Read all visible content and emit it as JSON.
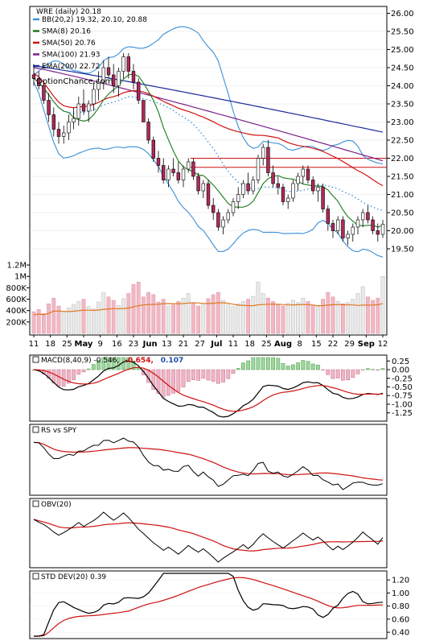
{
  "chart_data": {
    "type": "candlestick",
    "title": "WRE (daily) 20.18",
    "watermark": "OptionChance.com",
    "legend": [
      {
        "label": "BB(20,2) 19.32, 20.10, 20.88",
        "color": "#3b8fd6"
      },
      {
        "label": "SMA(8) 20.16",
        "color": "#1b7a1b"
      },
      {
        "label": "SMA(50) 20.76",
        "color": "#d01010"
      },
      {
        "label": "SMA(100) 21.93",
        "color": "#7a1f8a"
      },
      {
        "label": "EMA(200) 22.72",
        "color": "#1a2a9a"
      }
    ],
    "price_axis": {
      "ticks": [
        "26.00",
        "25.50",
        "25.00",
        "24.50",
        "24.00",
        "23.50",
        "23.00",
        "22.50",
        "22.00",
        "21.50",
        "21.00",
        "20.50",
        "20.00",
        "19.50"
      ],
      "ylim": [
        19.3,
        26.1
      ]
    },
    "volume_axis": {
      "ticks": [
        "1.2M",
        "1M",
        "800K",
        "600K",
        "400K",
        "200K"
      ],
      "ylim": [
        0,
        1300000
      ]
    },
    "x_ticks": [
      "11",
      "18",
      "25",
      "May",
      "9",
      "16",
      "23",
      "Jun",
      "13",
      "21",
      "27",
      "Jul",
      "11",
      "18",
      "25",
      "Aug",
      "8",
      "15",
      "22",
      "29",
      "Sep",
      "12"
    ],
    "bold_ticks": [
      "May",
      "Jun",
      "Jul",
      "Aug",
      "Sep"
    ],
    "resistance_lines": [
      22.0,
      21.75
    ],
    "ohlc": [
      [
        24.3,
        24.6,
        24.0,
        24.2
      ],
      [
        24.2,
        24.4,
        23.9,
        24.0
      ],
      [
        24.0,
        24.1,
        23.5,
        23.6
      ],
      [
        23.6,
        23.8,
        23.0,
        23.2
      ],
      [
        23.2,
        23.4,
        22.6,
        22.8
      ],
      [
        22.8,
        23.0,
        22.4,
        22.6
      ],
      [
        22.6,
        22.9,
        22.4,
        22.7
      ],
      [
        22.7,
        23.2,
        22.5,
        23.0
      ],
      [
        23.0,
        23.4,
        22.8,
        23.1
      ],
      [
        23.1,
        23.7,
        22.9,
        23.5
      ],
      [
        23.5,
        23.9,
        23.2,
        23.3
      ],
      [
        23.3,
        23.6,
        23.0,
        23.5
      ],
      [
        23.5,
        24.1,
        23.3,
        23.9
      ],
      [
        23.9,
        24.4,
        23.6,
        24.1
      ],
      [
        24.1,
        24.7,
        23.9,
        24.5
      ],
      [
        24.5,
        24.8,
        24.2,
        24.3
      ],
      [
        24.3,
        24.6,
        23.8,
        24.0
      ],
      [
        24.0,
        24.5,
        23.7,
        24.4
      ],
      [
        24.4,
        24.9,
        24.2,
        24.8
      ],
      [
        24.8,
        24.9,
        24.2,
        24.4
      ],
      [
        24.4,
        24.6,
        23.9,
        24.1
      ],
      [
        24.1,
        24.2,
        23.5,
        23.6
      ],
      [
        23.6,
        23.6,
        23.0,
        23.0
      ],
      [
        23.0,
        23.1,
        22.4,
        22.5
      ],
      [
        22.5,
        22.6,
        21.9,
        22.0
      ],
      [
        22.0,
        22.2,
        21.6,
        21.8
      ],
      [
        21.8,
        22.0,
        21.3,
        21.4
      ],
      [
        21.4,
        21.8,
        21.2,
        21.7
      ],
      [
        21.7,
        22.0,
        21.5,
        21.6
      ],
      [
        21.6,
        21.9,
        21.3,
        21.4
      ],
      [
        21.4,
        21.8,
        21.2,
        21.7
      ],
      [
        21.7,
        22.0,
        21.6,
        21.9
      ],
      [
        21.9,
        22.0,
        21.4,
        21.5
      ],
      [
        21.5,
        21.6,
        21.0,
        21.1
      ],
      [
        21.1,
        21.4,
        20.9,
        21.3
      ],
      [
        21.3,
        21.4,
        20.6,
        20.7
      ],
      [
        20.7,
        20.9,
        20.3,
        20.5
      ],
      [
        20.5,
        20.6,
        20.0,
        20.1
      ],
      [
        20.1,
        20.4,
        19.9,
        20.3
      ],
      [
        20.3,
        20.6,
        20.2,
        20.5
      ],
      [
        20.5,
        20.9,
        20.4,
        20.8
      ],
      [
        20.8,
        21.2,
        20.6,
        21.0
      ],
      [
        21.0,
        21.4,
        20.9,
        21.3
      ],
      [
        21.3,
        21.6,
        21.0,
        21.1
      ],
      [
        21.1,
        21.5,
        21.0,
        21.4
      ],
      [
        21.4,
        22.1,
        21.3,
        22.0
      ],
      [
        22.0,
        22.4,
        21.8,
        22.3
      ],
      [
        22.3,
        22.5,
        21.5,
        21.6
      ],
      [
        21.6,
        21.8,
        21.2,
        21.3
      ],
      [
        21.3,
        21.5,
        21.0,
        21.2
      ],
      [
        21.2,
        21.3,
        20.7,
        20.8
      ],
      [
        20.8,
        21.0,
        20.6,
        20.9
      ],
      [
        20.9,
        21.4,
        20.8,
        21.3
      ],
      [
        21.3,
        21.6,
        21.1,
        21.5
      ],
      [
        21.5,
        21.8,
        21.3,
        21.7
      ],
      [
        21.7,
        21.8,
        21.3,
        21.4
      ],
      [
        21.4,
        21.5,
        21.0,
        21.1
      ],
      [
        21.1,
        21.3,
        20.8,
        21.2
      ],
      [
        21.2,
        21.3,
        20.5,
        20.6
      ],
      [
        20.6,
        20.7,
        20.0,
        20.2
      ],
      [
        20.2,
        20.3,
        19.8,
        20.0
      ],
      [
        20.0,
        20.4,
        19.9,
        20.3
      ],
      [
        20.3,
        20.4,
        19.7,
        19.8
      ],
      [
        19.8,
        20.0,
        19.6,
        19.9
      ],
      [
        19.9,
        20.2,
        19.7,
        20.1
      ],
      [
        20.1,
        20.4,
        19.9,
        20.3
      ],
      [
        20.3,
        20.6,
        20.1,
        20.5
      ],
      [
        20.5,
        20.7,
        20.2,
        20.3
      ],
      [
        20.3,
        20.4,
        19.9,
        20.0
      ],
      [
        20.0,
        20.2,
        19.7,
        19.9
      ],
      [
        19.9,
        20.3,
        19.8,
        20.18
      ]
    ],
    "volume": [
      380,
      420,
      350,
      520,
      620,
      480,
      390,
      450,
      510,
      560,
      600,
      470,
      430,
      550,
      720,
      640,
      580,
      490,
      610,
      700,
      860,
      900,
      640,
      720,
      680,
      550,
      600,
      480,
      500,
      560,
      620,
      700,
      540,
      480,
      520,
      610,
      680,
      720,
      580,
      500,
      470,
      520,
      560,
      600,
      650,
      900,
      700,
      620,
      560,
      500,
      480,
      530,
      580,
      540,
      620,
      560,
      500,
      470,
      600,
      720,
      640,
      560,
      520,
      540,
      600,
      700,
      820,
      640,
      580,
      620,
      1000
    ],
    "macd_panel": {
      "label": "MACD(8,40,9) -0.546,",
      "value1": "-0.654,",
      "value2": "0.107",
      "ticks": [
        "0.25",
        "0.00",
        "-0.25",
        "-0.50",
        "-0.75",
        "-1.00",
        "-1.25"
      ],
      "ylim": [
        -1.42,
        0.35
      ]
    },
    "rs_panel": {
      "label": "RS vs SPY"
    },
    "obv_panel": {
      "label": "OBV(20)"
    },
    "std_panel": {
      "label": "STD DEV(20) 0.39",
      "ticks": [
        "1.20",
        "1.00",
        "0.80",
        "0.60",
        "0.40"
      ],
      "ylim": [
        0.34,
        1.3
      ]
    }
  }
}
